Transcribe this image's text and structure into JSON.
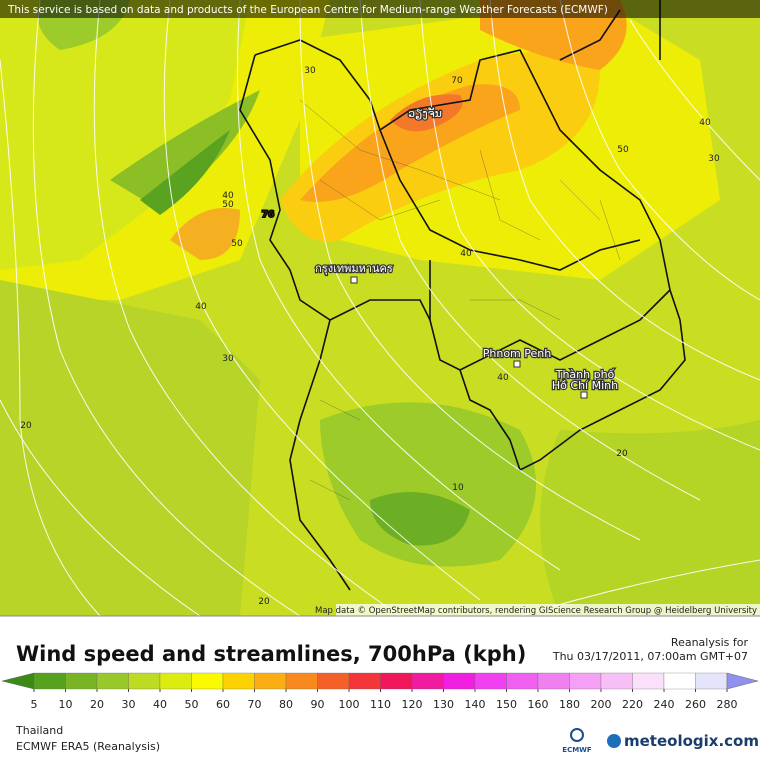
{
  "banner": "This service is based on data and products of the European Centre for Medium-range Weather Forecasts (ECMWF)",
  "map": {
    "places": [
      "ວຽງຈັນ",
      "กรุงเทพมหานคร",
      "Phnom Penh",
      "Thành phố",
      "Hồ Chí Minh"
    ],
    "contour_labels": [
      30,
      70,
      50,
      40,
      30,
      40,
      50,
      76,
      50,
      40,
      30,
      20,
      40,
      40,
      20,
      10,
      20
    ],
    "attribution": "Map data © OpenStreetMap contributors, rendering GIScience Research Group @ Heidelberg University"
  },
  "legend": {
    "title": "Wind speed and streamlines, 700hPa (kph)",
    "reanalysis_label": "Reanalysis for",
    "valid_time": "Thu 03/17/2011, 07:00am GMT+07",
    "ticks": [
      5,
      10,
      20,
      30,
      40,
      50,
      60,
      70,
      80,
      90,
      100,
      110,
      120,
      130,
      140,
      150,
      160,
      180,
      200,
      220,
      240,
      260,
      280
    ],
    "colors": [
      "#3b8a17",
      "#56a11e",
      "#78b426",
      "#99c82a",
      "#bcdb22",
      "#ddec10",
      "#fafa00",
      "#fcd200",
      "#fbae14",
      "#f8891e",
      "#f56028",
      "#f2363a",
      "#f0165a",
      "#f01ca0",
      "#f01ee0",
      "#f040f0",
      "#f060f0",
      "#f080f0",
      "#f4a0f4",
      "#f6c0f6",
      "#fae0fa",
      "#ffffff",
      "#e4e4fa",
      "#c0c0f4",
      "#9090ee"
    ]
  },
  "footer": {
    "region": "Thailand",
    "model": "ECMWF ERA5 (Reanalysis)",
    "ecmwf_logo": "ECMWF",
    "brand": "meteologix.com"
  }
}
